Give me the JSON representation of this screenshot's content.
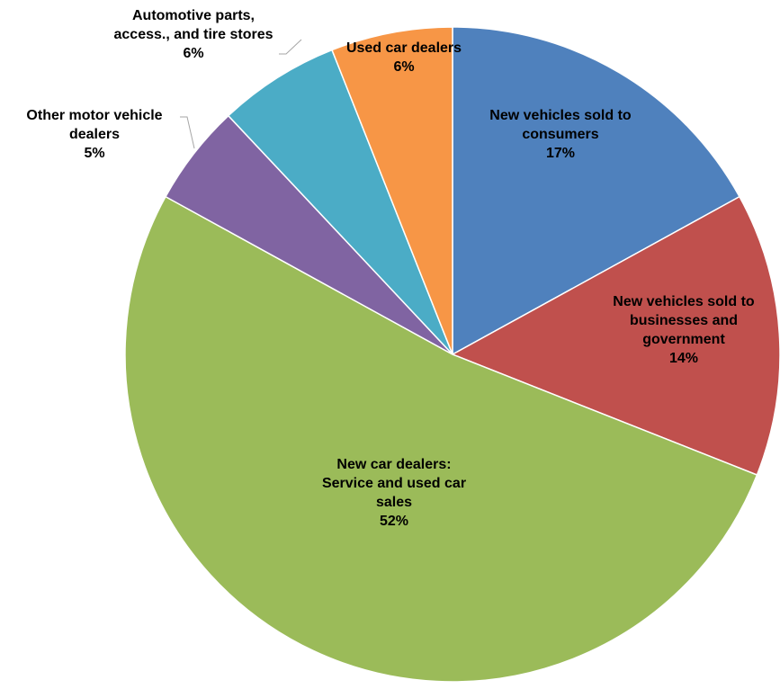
{
  "chart_data": {
    "type": "pie",
    "title": "",
    "start_angle_deg": 0,
    "direction": "clockwise",
    "slices": [
      {
        "name": "New vehicles sold to consumers",
        "label_lines": [
          "New vehicles sold to",
          "consumers"
        ],
        "value": 17,
        "percent_label": "17%",
        "color": "#4f81bd"
      },
      {
        "name": "New vehicles sold to businesses and government",
        "label_lines": [
          "New vehicles sold to",
          "businesses and",
          "government"
        ],
        "value": 14,
        "percent_label": "14%",
        "color": "#c0504d"
      },
      {
        "name": "New car dealers: Service and used car sales",
        "label_lines": [
          "New car dealers:",
          "Service and used car",
          "sales"
        ],
        "value": 52,
        "percent_label": "52%",
        "color": "#9bbb59"
      },
      {
        "name": "Other motor vehicle dealers",
        "label_lines": [
          "Other motor vehicle",
          "dealers"
        ],
        "value": 5,
        "percent_label": "5%",
        "color": "#8064a2"
      },
      {
        "name": "Automotive parts, access., and tire stores",
        "label_lines": [
          "Automotive parts,",
          "access., and tire stores"
        ],
        "value": 6,
        "percent_label": "6%",
        "color": "#4bacc6"
      },
      {
        "name": "Used car dealers",
        "label_lines": [
          "Used car dealers"
        ],
        "value": 6,
        "percent_label": "6%",
        "color": "#f79646"
      }
    ]
  }
}
